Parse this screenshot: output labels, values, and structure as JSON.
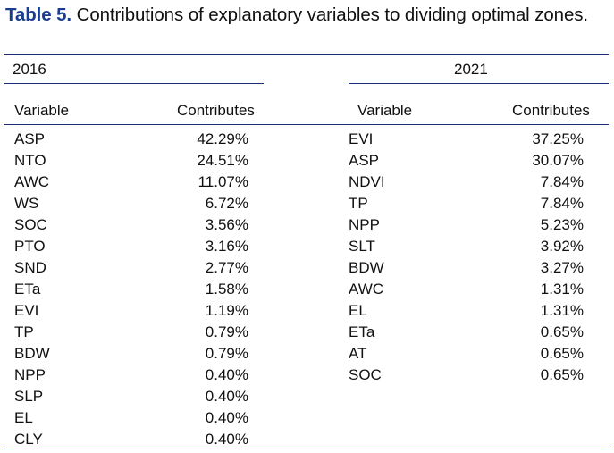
{
  "caption": {
    "label": "Table 5.",
    "text": "Contributions of explanatory variables to dividing optimal zones."
  },
  "left": {
    "year": "2016",
    "header_variable": "Variable",
    "header_contributes": "Contributes",
    "rows": [
      {
        "variable": "ASP",
        "contributes": "42.29%"
      },
      {
        "variable": "NTO",
        "contributes": "24.51%"
      },
      {
        "variable": "AWC",
        "contributes": "11.07%"
      },
      {
        "variable": "WS",
        "contributes": "6.72%"
      },
      {
        "variable": "SOC",
        "contributes": "3.56%"
      },
      {
        "variable": "PTO",
        "contributes": "3.16%"
      },
      {
        "variable": "SND",
        "contributes": "2.77%"
      },
      {
        "variable": "ETa",
        "contributes": "1.58%"
      },
      {
        "variable": "EVI",
        "contributes": "1.19%"
      },
      {
        "variable": "TP",
        "contributes": "0.79%"
      },
      {
        "variable": "BDW",
        "contributes": "0.79%"
      },
      {
        "variable": "NPP",
        "contributes": "0.40%"
      },
      {
        "variable": "SLP",
        "contributes": "0.40%"
      },
      {
        "variable": "EL",
        "contributes": "0.40%"
      },
      {
        "variable": "CLY",
        "contributes": "0.40%"
      }
    ]
  },
  "right": {
    "year": "2021",
    "header_variable": "Variable",
    "header_contributes": "Contributes",
    "rows": [
      {
        "variable": "EVI",
        "contributes": "37.25%"
      },
      {
        "variable": "ASP",
        "contributes": "30.07%"
      },
      {
        "variable": "NDVI",
        "contributes": "7.84%"
      },
      {
        "variable": "TP",
        "contributes": "7.84%"
      },
      {
        "variable": "NPP",
        "contributes": "5.23%"
      },
      {
        "variable": "SLT",
        "contributes": "3.92%"
      },
      {
        "variable": "BDW",
        "contributes": "3.27%"
      },
      {
        "variable": "AWC",
        "contributes": "1.31%"
      },
      {
        "variable": "EL",
        "contributes": "1.31%"
      },
      {
        "variable": "ETa",
        "contributes": "0.65%"
      },
      {
        "variable": "AT",
        "contributes": "0.65%"
      },
      {
        "variable": "SOC",
        "contributes": "0.65%"
      }
    ]
  },
  "colors": {
    "caption_label": "#1a3d8f",
    "rules": "#1a2f7a",
    "text": "#111111"
  }
}
